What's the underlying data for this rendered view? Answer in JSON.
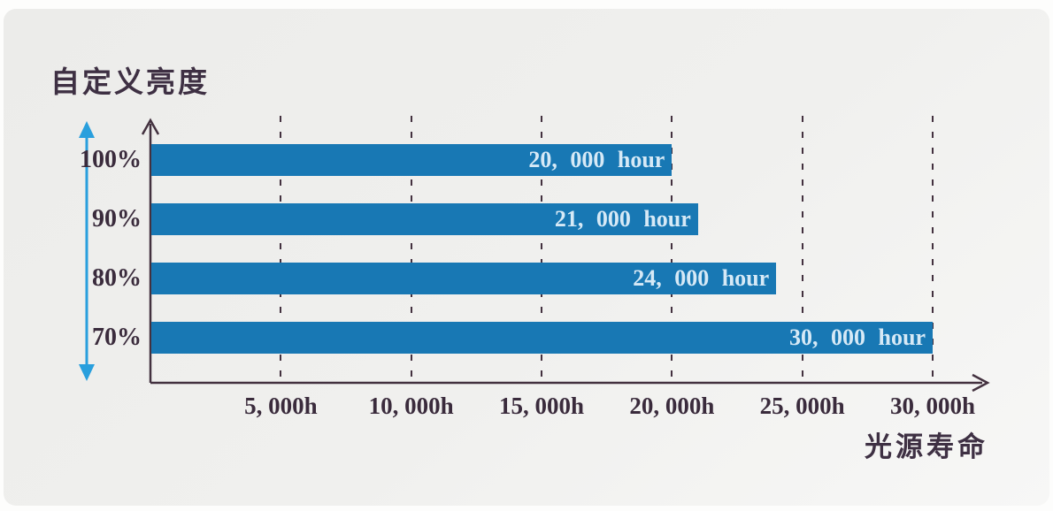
{
  "chart_data": {
    "type": "bar",
    "orientation": "horizontal",
    "title": "自定义亮度",
    "xlabel": "光源寿命",
    "value_unit": "hours",
    "bars": [
      {
        "category": "100%",
        "value": 20000,
        "label": "20, 000 hour"
      },
      {
        "category": "90%",
        "value": 21000,
        "label": "21, 000 hour"
      },
      {
        "category": "80%",
        "value": 24000,
        "label": "24, 000 hour"
      },
      {
        "category": "70%",
        "value": 30000,
        "label": "30, 000 hour"
      }
    ],
    "x_ticks": [
      {
        "value": 5000,
        "label": "5, 000h"
      },
      {
        "value": 10000,
        "label": "10, 000h"
      },
      {
        "value": 15000,
        "label": "15, 000h"
      },
      {
        "value": 20000,
        "label": "20, 000h"
      },
      {
        "value": 25000,
        "label": "25, 000h"
      },
      {
        "value": 30000,
        "label": "30, 000h"
      }
    ],
    "xlim": [
      0,
      32000
    ],
    "grid": {
      "orientation": "vertical",
      "style": "dashed"
    },
    "legend": "none",
    "colors": {
      "bar": "#1878b4",
      "bar_label": "#d6e9f6",
      "axis": "#43313f",
      "tick_label": "#3a2b3c",
      "grid": "#43313f",
      "range_arrow": "#299fdd",
      "background": "#efefed"
    }
  }
}
